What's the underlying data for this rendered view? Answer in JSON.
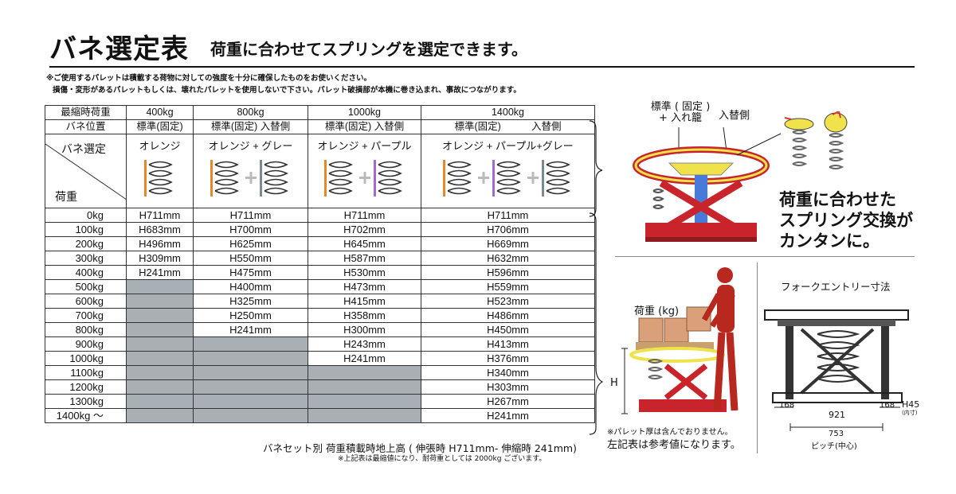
{
  "title": "バネ選定表",
  "subtitle": "荷重に合わせてスプリングを選定できます。",
  "notes": [
    "※ご使用するパレットは積載する荷物に対しての強度を十分に確保したものをお使いください。",
    "損傷・変形があるパレットもしくは、壊れたパレットを使用しないで下さい。パレット破損部が本機に巻き込まれ、事故につながります。"
  ],
  "table": {
    "col_headers": [
      "最縮時荷重",
      "400kg",
      "800kg",
      "1000kg",
      "1400kg"
    ],
    "position_row": {
      "label": "バネ位置",
      "c400": "標準(固定)",
      "c800a": "標準(固定)",
      "c800b": "入替側",
      "c1000a": "標準(固定)",
      "c1000b": "入替側",
      "c1400a": "標準(固定)",
      "c1400b": "入替側"
    },
    "select_label": "バネ選定",
    "load_label": "荷重",
    "selections": [
      "オレンジ",
      "オレンジ + グレー",
      "オレンジ + パープル",
      "オレンジ + パープル+グレー"
    ],
    "rows": [
      {
        "load": "0kg",
        "c400": "H711mm",
        "c800": "H711mm",
        "c1000": "H711mm",
        "c1400": "H711mm"
      },
      {
        "load": "100kg",
        "c400": "H683mm",
        "c800": "H700mm",
        "c1000": "H702mm",
        "c1400": "H706mm"
      },
      {
        "load": "200kg",
        "c400": "H496mm",
        "c800": "H625mm",
        "c1000": "H645mm",
        "c1400": "H669mm"
      },
      {
        "load": "300kg",
        "c400": "H309mm",
        "c800": "H550mm",
        "c1000": "H587mm",
        "c1400": "H632mm"
      },
      {
        "load": "400kg",
        "c400": "H241mm",
        "c800": "H475mm",
        "c1000": "H530mm",
        "c1400": "H596mm"
      },
      {
        "load": "500kg",
        "c400": "",
        "c800": "H400mm",
        "c1000": "H473mm",
        "c1400": "H559mm"
      },
      {
        "load": "600kg",
        "c400": "",
        "c800": "H325mm",
        "c1000": "H415mm",
        "c1400": "H523mm"
      },
      {
        "load": "700kg",
        "c400": "",
        "c800": "H250mm",
        "c1000": "H358mm",
        "c1400": "H486mm"
      },
      {
        "load": "800kg",
        "c400": "",
        "c800": "H241mm",
        "c1000": "H300mm",
        "c1400": "H450mm"
      },
      {
        "load": "900kg",
        "c400": "",
        "c800": "",
        "c1000": "H243mm",
        "c1400": "H413mm"
      },
      {
        "load": "1000kg",
        "c400": "",
        "c800": "",
        "c1000": "H241mm",
        "c1400": "H376mm"
      },
      {
        "load": "1100kg",
        "c400": "",
        "c800": "",
        "c1000": "",
        "c1400": "H340mm"
      },
      {
        "load": "1200kg",
        "c400": "",
        "c800": "",
        "c1000": "",
        "c1400": "H303mm"
      },
      {
        "load": "1300kg",
        "c400": "",
        "c800": "",
        "c1000": "",
        "c1400": "H267mm"
      },
      {
        "load": "1400kg ～",
        "c400": "",
        "c800": "",
        "c1000": "",
        "c1400": "H241mm"
      }
    ]
  },
  "footer": {
    "line1": "バネセット別 荷重積載時地上高 ( 伸張時 H711mm- 伸縮時 241mm)",
    "line2": "※上記表は最縮値になり、耐荷重としては 2000kg ございます。"
  },
  "right": {
    "label_standard": "標準 ( 固定 )",
    "label_standard2": "+ 入れ籠",
    "label_swap": "入替側",
    "headline": [
      "荷重に合わせた",
      "スプリング交換が",
      "カンタンに。"
    ],
    "load_kg": "荷重 (kg)",
    "h_label": "H",
    "pallet_note": "※パレット厚は含んでおりません。",
    "ref_note": "左記表は参考値になります。",
    "fork_title": "フォークエントリー寸法",
    "dim_168a": "168",
    "dim_921": "921",
    "dim_168b": "168",
    "dim_h45": "H45",
    "dim_inner": "(内寸)",
    "dim_753": "753",
    "pitch": "ピッチ(中心)"
  },
  "colors": {
    "orange": "#e8872a",
    "purple": "#a06bd0",
    "grey": "#7a8a8f",
    "shade": "#a9b0b5",
    "machine_red": "#c9242b",
    "platform_yellow": "#efe24a"
  }
}
